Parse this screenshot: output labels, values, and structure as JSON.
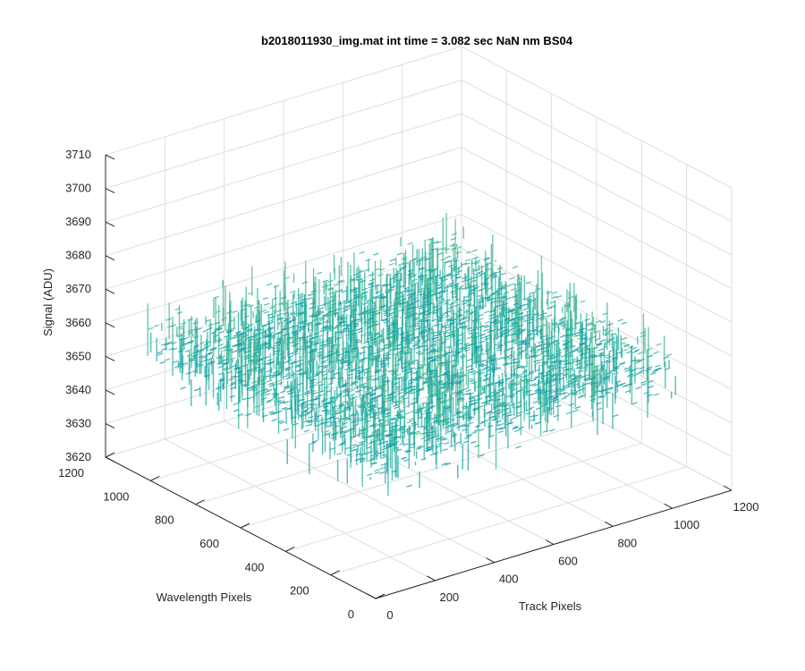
{
  "chart_data": {
    "type": "surface",
    "title": "b2018011930_img.mat int time = 3.082 sec  NaN nm BS04",
    "xlabel": "Track Pixels",
    "ylabel": "Wavelength Pixels",
    "zlabel": "Signal (ADU)",
    "xlim": [
      0,
      1200
    ],
    "ylim": [
      0,
      1200
    ],
    "zlim": [
      3620,
      3710
    ],
    "xticks": [
      "0",
      "200",
      "400",
      "600",
      "800",
      "1000",
      "1200"
    ],
    "yticks": [
      "0",
      "200",
      "400",
      "600",
      "800",
      "1000",
      "1200"
    ],
    "zticks": [
      "3620",
      "3630",
      "3640",
      "3650",
      "3660",
      "3670",
      "3680",
      "3690",
      "3700",
      "3710"
    ],
    "data_extent": {
      "x": [
        0,
        1024
      ],
      "y": [
        0,
        1024
      ]
    },
    "signal_mean": 3660,
    "signal_range": [
      3625,
      3705
    ],
    "grid": true,
    "colormap": "parula",
    "colors": {
      "low": "#0072bd",
      "mid": "#20b0a0",
      "high": "#e0d040"
    }
  }
}
